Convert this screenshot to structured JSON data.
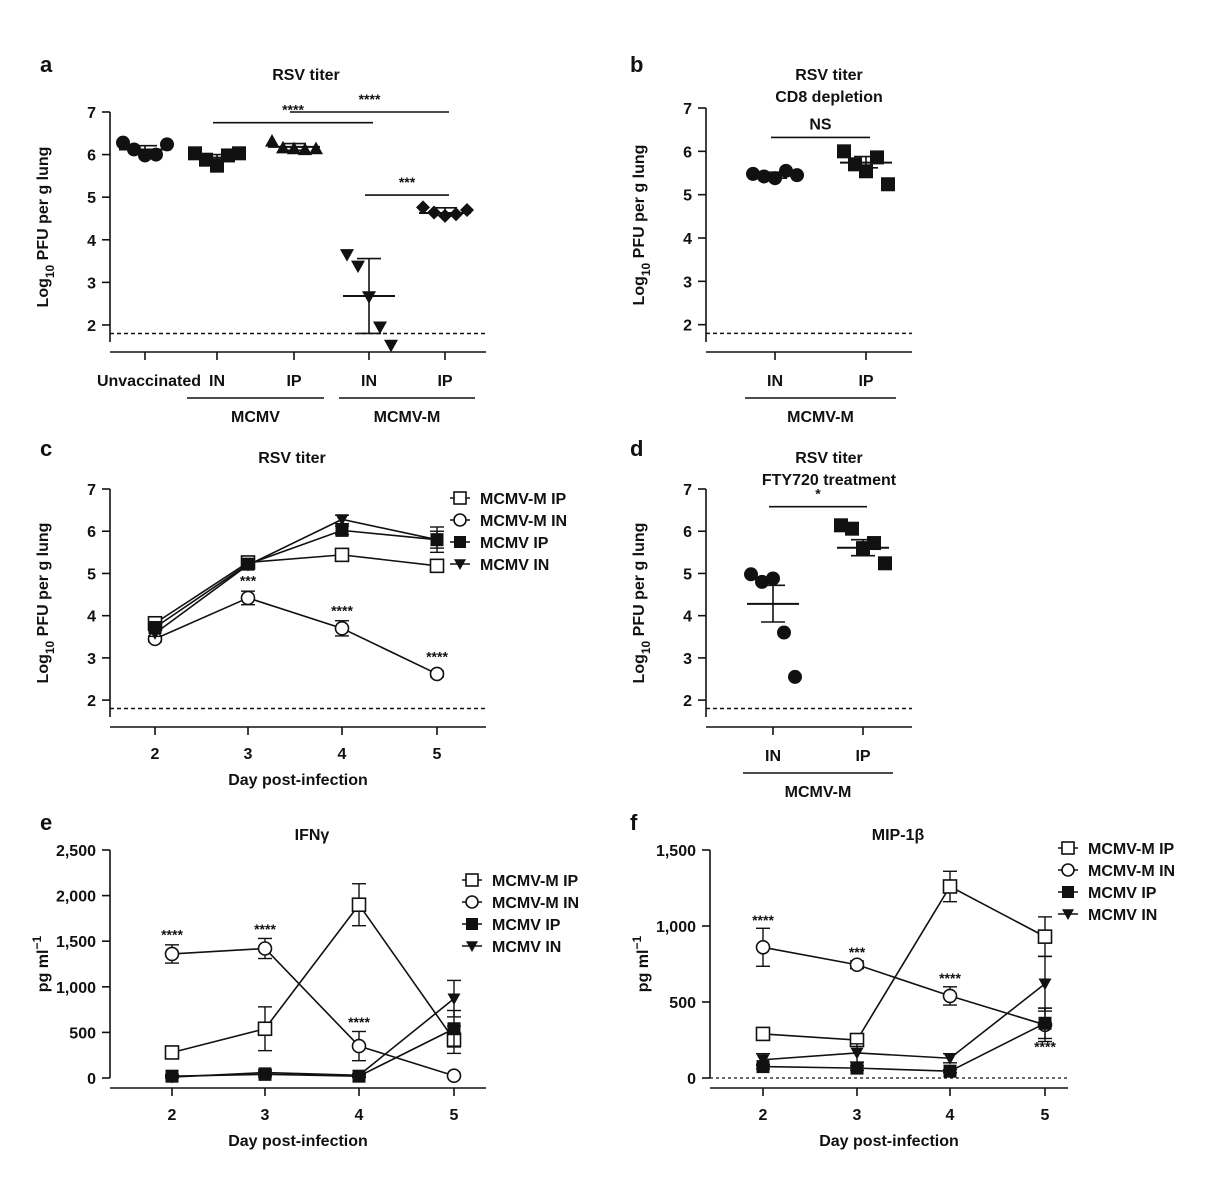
{
  "panels_order": [
    "a",
    "b",
    "c",
    "d",
    "e",
    "f"
  ],
  "chart_data": [
    {
      "id": "a",
      "type": "scatter",
      "letter": "a",
      "title": "RSV titer",
      "subtitle": "",
      "ylabel_main": "Log",
      "ylabel_sub": "10",
      "ylabel_rest": " PFU per g lung",
      "yticks": [
        "2",
        "3",
        "4",
        "5",
        "6",
        "7"
      ],
      "ylim": [
        1.6,
        7.0
      ],
      "detection_limit": 1.8,
      "categories": [
        "Unvaccinated",
        "IN",
        "IP",
        "IN",
        "IP"
      ],
      "groups": [
        {
          "label": "MCMV",
          "span": [
            1,
            2
          ]
        },
        {
          "label": "MCMV-M",
          "span": [
            3,
            4
          ]
        }
      ],
      "series": [
        {
          "marker": "circle",
          "points": [
            6.28,
            6.12,
            5.98,
            6.0,
            6.24
          ],
          "mean": 6.12,
          "err": [
            6.03,
            6.21
          ]
        },
        {
          "marker": "square",
          "points": [
            6.03,
            5.88,
            5.74,
            5.98,
            6.03
          ],
          "mean": 5.93,
          "err": [
            5.86,
            6.0
          ]
        },
        {
          "marker": "triangle-up",
          "points": [
            6.32,
            6.16,
            6.14,
            6.12,
            6.14
          ],
          "mean": 6.18,
          "err": [
            6.1,
            6.26
          ]
        },
        {
          "marker": "triangle-down",
          "points": [
            3.65,
            3.38,
            2.66,
            1.95,
            1.52
          ],
          "mean": 2.68,
          "err": [
            1.8,
            3.56
          ]
        },
        {
          "marker": "diamond",
          "points": [
            4.76,
            4.64,
            4.56,
            4.6,
            4.7
          ],
          "mean": 4.63,
          "err": [
            4.57,
            4.75
          ]
        }
      ],
      "significance": [
        {
          "label": "****",
          "from": 1,
          "to": 3,
          "y": 6.75
        },
        {
          "label": "****",
          "from": 2,
          "to": 4,
          "y": 7.0
        },
        {
          "label": "***",
          "from": 3,
          "to": 4,
          "y": 5.05
        }
      ]
    },
    {
      "id": "b",
      "type": "scatter",
      "letter": "b",
      "title": "RSV titer",
      "subtitle": "CD8 depletion",
      "ylabel_main": "Log",
      "ylabel_sub": "10",
      "ylabel_rest": " PFU per g lung",
      "yticks": [
        "2",
        "3",
        "4",
        "5",
        "6",
        "7"
      ],
      "ylim": [
        1.6,
        7.0
      ],
      "detection_limit": 1.8,
      "categories": [
        "IN",
        "IP"
      ],
      "groups": [
        {
          "label": "MCMV-M",
          "span": [
            0,
            1
          ]
        }
      ],
      "series": [
        {
          "marker": "circle",
          "points": [
            5.48,
            5.42,
            5.38,
            5.55,
            5.45
          ],
          "mean": 5.44,
          "err": [
            5.38,
            5.52
          ]
        },
        {
          "marker": "square",
          "points": [
            6.0,
            5.7,
            5.54,
            5.86,
            5.24
          ],
          "mean": 5.74,
          "err": [
            5.62,
            5.88
          ]
        }
      ],
      "significance": [
        {
          "label": "NS",
          "from": 0,
          "to": 1,
          "y": 6.32
        }
      ]
    },
    {
      "id": "c",
      "type": "line",
      "letter": "c",
      "title": "RSV titer",
      "subtitle": "",
      "ylabel_main": "Log",
      "ylabel_sub": "10",
      "ylabel_rest": " PFU per g lung",
      "xlabel": "Day post-infection",
      "x": [
        "2",
        "3",
        "4",
        "5"
      ],
      "yticks": [
        "2",
        "3",
        "4",
        "5",
        "6",
        "7"
      ],
      "ylim": [
        1.6,
        7.0
      ],
      "detection_limit": 1.8,
      "series": [
        {
          "name": "MCMV-M IP",
          "marker": "square-open",
          "values": [
            3.82,
            5.26,
            5.44,
            5.18
          ],
          "err": [
            0.08,
            0.1,
            0.12,
            0.12
          ]
        },
        {
          "name": "MCMV-M IN",
          "marker": "circle-open",
          "values": [
            3.45,
            4.42,
            3.7,
            2.62
          ],
          "err": [
            0.07,
            0.16,
            0.18,
            0.07
          ]
        },
        {
          "name": "MCMV IP",
          "marker": "square-filled",
          "values": [
            3.72,
            5.22,
            6.02,
            5.8
          ],
          "err": [
            0.07,
            0.06,
            0.1,
            0.2
          ]
        },
        {
          "name": "MCMV IN",
          "marker": "triangle-down",
          "values": [
            3.58,
            5.2,
            6.28,
            5.8
          ],
          "err": [
            0.07,
            0.06,
            0.1,
            0.3
          ]
        }
      ],
      "annotations": [
        {
          "label": "***",
          "xi": 1,
          "y": 4.72
        },
        {
          "label": "****",
          "xi": 2,
          "y": 4.0
        },
        {
          "label": "****",
          "xi": 3,
          "y": 2.92
        }
      ]
    },
    {
      "id": "d",
      "type": "scatter",
      "letter": "d",
      "title": "RSV titer",
      "subtitle": "FTY720 treatment",
      "ylabel_main": "Log",
      "ylabel_sub": "10",
      "ylabel_rest": " PFU per g lung",
      "yticks": [
        "2",
        "3",
        "4",
        "5",
        "6",
        "7"
      ],
      "ylim": [
        1.6,
        7.0
      ],
      "detection_limit": 1.8,
      "categories": [
        "IN",
        "IP"
      ],
      "groups": [
        {
          "label": "MCMV-M",
          "span": [
            0,
            1
          ]
        }
      ],
      "series": [
        {
          "marker": "circle",
          "points": [
            4.98,
            4.8,
            4.88,
            3.6,
            2.55
          ],
          "mean": 4.28,
          "err": [
            3.85,
            4.72
          ]
        },
        {
          "marker": "square",
          "points": [
            6.14,
            6.06,
            5.6,
            5.72,
            5.24
          ],
          "mean": 5.61,
          "err": [
            5.42,
            5.8
          ]
        }
      ],
      "significance": [
        {
          "label": "*",
          "from": 0,
          "to": 1,
          "y": 6.58
        }
      ]
    },
    {
      "id": "e",
      "type": "line",
      "letter": "e",
      "title": "IFNγ",
      "subtitle": "",
      "ylabel_main": "pg ml",
      "ylabel_sup": "−1",
      "xlabel": "Day post-infection",
      "x": [
        "2",
        "3",
        "4",
        "5"
      ],
      "yticks": [
        "0",
        "500",
        "1,000",
        "1,500",
        "2,000",
        "2,500"
      ],
      "ylim": [
        0,
        2500
      ],
      "series": [
        {
          "name": "MCMV-M IP",
          "marker": "square-open",
          "values": [
            280,
            540,
            1900,
            420
          ],
          "err": [
            60,
            240,
            230,
            150
          ]
        },
        {
          "name": "MCMV-M IN",
          "marker": "circle-open",
          "values": [
            1360,
            1420,
            350,
            25
          ],
          "err": [
            100,
            110,
            160,
            20
          ]
        },
        {
          "name": "MCMV IP",
          "marker": "square-filled",
          "values": [
            20,
            40,
            20,
            540
          ],
          "err": [
            15,
            30,
            15,
            200
          ]
        },
        {
          "name": "MCMV IN",
          "marker": "triangle-down",
          "values": [
            10,
            60,
            30,
            870
          ],
          "err": [
            10,
            30,
            15,
            200
          ]
        }
      ],
      "annotations": [
        {
          "label": "****",
          "xi": 0,
          "y": 1520
        },
        {
          "label": "****",
          "xi": 1,
          "y": 1580
        },
        {
          "label": "****",
          "xi": 2,
          "y": 560
        }
      ]
    },
    {
      "id": "f",
      "type": "line",
      "letter": "f",
      "title": "MIP-1β",
      "subtitle": "",
      "ylabel_main": "pg ml",
      "ylabel_sup": "−1",
      "xlabel": "Day post-infection",
      "x": [
        "2",
        "3",
        "4",
        "5"
      ],
      "yticks": [
        "0",
        "500",
        "1,000",
        "1,500"
      ],
      "ylim": [
        0,
        1500
      ],
      "series": [
        {
          "name": "MCMV-M IP",
          "marker": "square-open",
          "values": [
            290,
            250,
            1260,
            930
          ],
          "err": [
            30,
            30,
            100,
            130
          ]
        },
        {
          "name": "MCMV-M IN",
          "marker": "circle-open",
          "values": [
            860,
            745,
            540,
            350
          ],
          "err": [
            125,
            25,
            60,
            110
          ]
        },
        {
          "name": "MCMV IP",
          "marker": "square-filled",
          "values": [
            75,
            65,
            45,
            360
          ],
          "err": [
            15,
            15,
            10,
            100
          ]
        },
        {
          "name": "MCMV IN",
          "marker": "triangle-down",
          "values": [
            120,
            165,
            130,
            620
          ],
          "err": [
            40,
            60,
            30,
            180
          ]
        }
      ],
      "annotations": [
        {
          "label": "****",
          "xi": 0,
          "y": 1005
        },
        {
          "label": "***",
          "xi": 1,
          "y": 795
        },
        {
          "label": "****",
          "xi": 2,
          "y": 625
        },
        {
          "label": "****",
          "xi": 3,
          "y": 175
        }
      ]
    }
  ]
}
